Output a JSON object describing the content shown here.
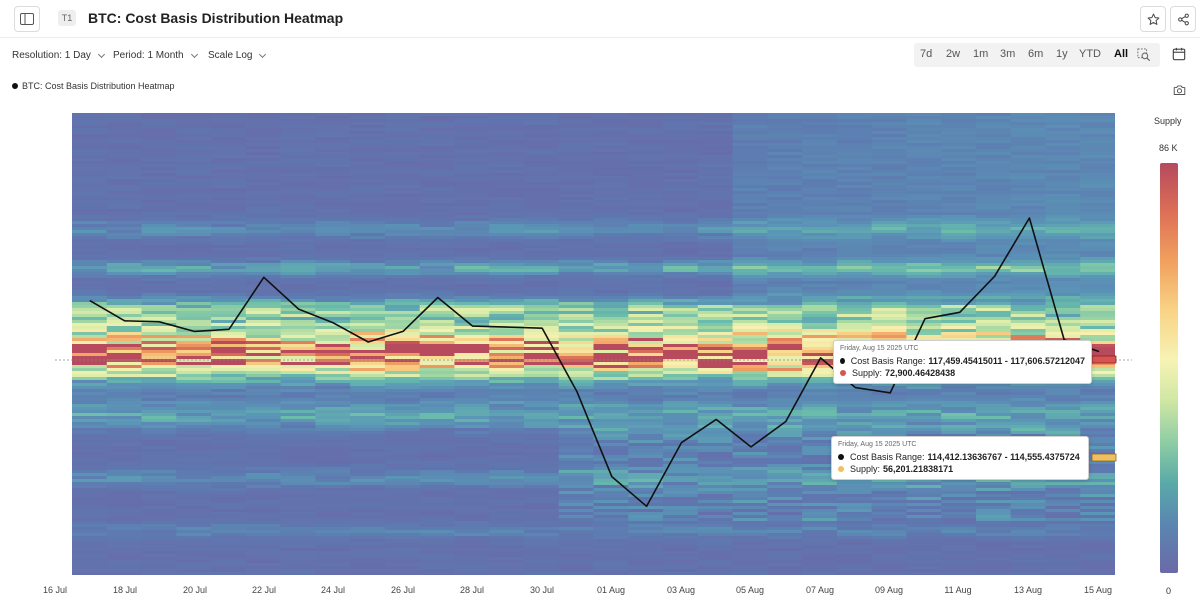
{
  "header": {
    "title": "BTC: Cost Basis Distribution Heatmap",
    "badge": "T1",
    "sidebar_toggle_icon": "sidebar-toggle-icon",
    "star_icon": "star-icon",
    "share_icon": "share-icon"
  },
  "toolbar": {
    "resolution_label": "Resolution: 1 Day",
    "period_label": "Period: 1 Month",
    "scale_label": "Scale Log",
    "calendar_icon": "calendar-icon",
    "zoom_icon": "zoom-icon",
    "camera_icon": "camera-icon",
    "ranges": [
      "7d",
      "2w",
      "1m",
      "3m",
      "6m",
      "1y",
      "YTD",
      "All"
    ],
    "active_range": "All"
  },
  "chart_data": {
    "type": "heatmap",
    "title": "BTC: Cost Basis Distribution Heatmap",
    "legend": [
      "BTC: Cost Basis Distribution Heatmap"
    ],
    "x_tick_labels": [
      "16 Jul",
      "18 Jul",
      "20 Jul",
      "22 Jul",
      "24 Jul",
      "26 Jul",
      "28 Jul",
      "30 Jul",
      "01 Aug",
      "03 Aug",
      "05 Aug",
      "07 Aug",
      "09 Aug",
      "11 Aug",
      "13 Aug",
      "15 Aug"
    ],
    "colorbar": {
      "label": "Supply",
      "max_label": "86 K",
      "min_label": "0"
    },
    "price_series": {
      "name": "BTC: Cost Basis Distribution Heatmap",
      "x": [
        "2025-07-17",
        "2025-07-18",
        "2025-07-19",
        "2025-07-20",
        "2025-07-21",
        "2025-07-22",
        "2025-07-23",
        "2025-07-24",
        "2025-07-25",
        "2025-07-26",
        "2025-07-27",
        "2025-07-28",
        "2025-07-29",
        "2025-07-30",
        "2025-07-31",
        "2025-08-01",
        "2025-08-02",
        "2025-08-03",
        "2025-08-04",
        "2025-08-05",
        "2025-08-06",
        "2025-08-07",
        "2025-08-08",
        "2025-08-09",
        "2025-08-10",
        "2025-08-11",
        "2025-08-12",
        "2025-08-13",
        "2025-08-14",
        "2025-08-15"
      ],
      "y_relative": [
        0.56,
        0.37,
        0.36,
        0.27,
        0.29,
        0.78,
        0.48,
        0.35,
        0.17,
        0.27,
        0.59,
        0.32,
        0.31,
        0.3,
        -0.3,
        -1.1,
        -1.38,
        -0.78,
        -0.56,
        -0.82,
        -0.58,
        0.02,
        -0.26,
        -0.31,
        0.39,
        0.45,
        0.79,
        1.34,
        0.19,
        0.08
      ]
    },
    "tooltips": [
      {
        "date": "Friday, Aug 15 2025 UTC",
        "range_label": "Cost Basis Range:",
        "range_value": "117,459.45415011 - 117,606.57212047",
        "supply_label": "Supply:",
        "supply_value": "72,900.46428438",
        "dot_color": "#d9534f"
      },
      {
        "date": "Friday, Aug 15 2025 UTC",
        "range_label": "Cost Basis Range:",
        "range_value": "114,412.13636767 - 114,555.4375724",
        "supply_label": "Supply:",
        "supply_value": "56,201.21838171",
        "dot_color": "#f0c060"
      }
    ],
    "grid": false,
    "legend_placement": "top-left"
  }
}
